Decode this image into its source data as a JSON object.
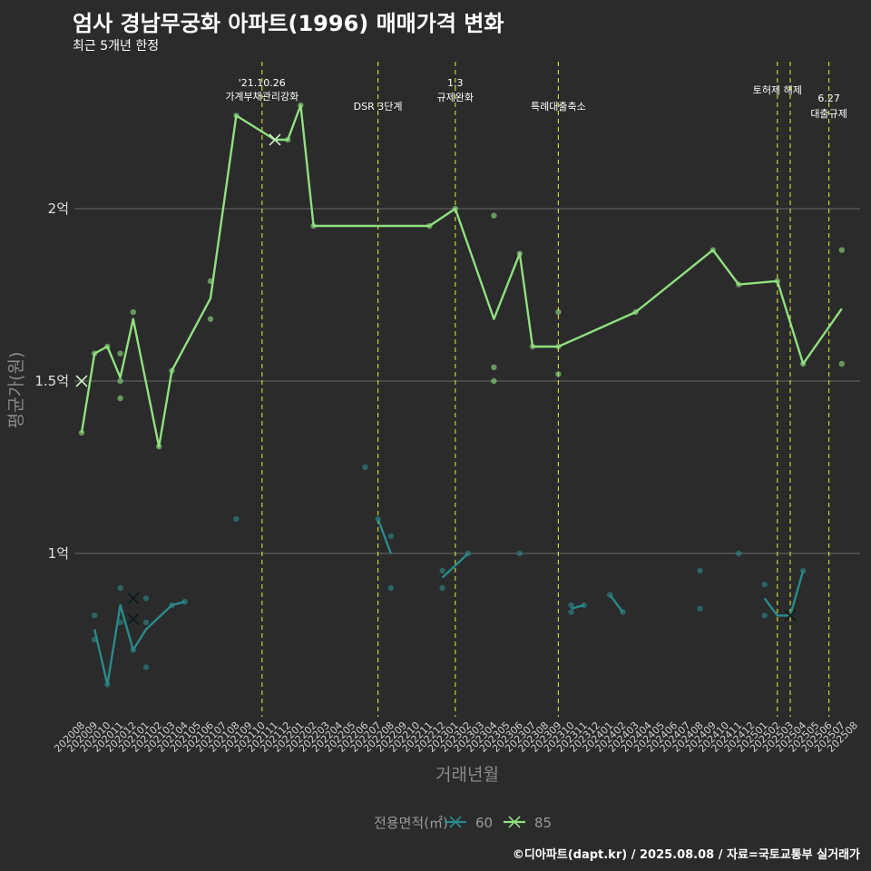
{
  "chart_data": {
    "type": "line",
    "title": "엄사 경남무궁화 아파트(1996) 매매가격 변화",
    "subtitle": "최근 5개년 한정",
    "xlabel": "거래년월",
    "ylabel": "평균가(원)",
    "caption": "©디아파트(dapt.kr) / 2025.08.08 / 자료=국토교통부 실거래가",
    "legend_title": "전용면적(㎡)",
    "legend_position": "bottom",
    "y_range": [
      0.5,
      2.15
    ],
    "y_ticks": [
      {
        "value": 1.0,
        "label": "1억"
      },
      {
        "value": 1.5,
        "label": "1.5억"
      },
      {
        "value": 2.0,
        "label": "2억"
      }
    ],
    "x_categories": [
      "202008",
      "202009",
      "202010",
      "202011",
      "202012",
      "202101",
      "202102",
      "202103",
      "202104",
      "202105",
      "202106",
      "202107",
      "202108",
      "202109",
      "202110",
      "202111",
      "202112",
      "202201",
      "202202",
      "202203",
      "202204",
      "202205",
      "202206",
      "202207",
      "202208",
      "202209",
      "202210",
      "202211",
      "202212",
      "202301",
      "202302",
      "202303",
      "202304",
      "202305",
      "202306",
      "202307",
      "202308",
      "202309",
      "202310",
      "202311",
      "202312",
      "202401",
      "202402",
      "202403",
      "202404",
      "202405",
      "202406",
      "202407",
      "202408",
      "202409",
      "202410",
      "202411",
      "202412",
      "202501",
      "202502",
      "202503",
      "202504",
      "202505",
      "202506",
      "202507",
      "202508"
    ],
    "events": [
      {
        "x": "202110",
        "lines": [
          "'21.10.26",
          "가계부채관리강화"
        ]
      },
      {
        "x": "202207",
        "lines": [
          "DSR 3단계"
        ]
      },
      {
        "x": "202301",
        "lines": [
          "1.3",
          "규제완화"
        ]
      },
      {
        "x": "202309",
        "lines": [
          "특례대출축소"
        ]
      },
      {
        "x": "202502",
        "lines": [
          "토허제 해제"
        ]
      },
      {
        "x": "202503",
        "lines": []
      },
      {
        "x": "202506",
        "lines": [
          "6.27",
          "대출규제"
        ]
      }
    ],
    "series": [
      {
        "name": "60",
        "color": "#2a8a8a",
        "line": [
          {
            "x": "202009",
            "y": 0.78
          },
          {
            "x": "202010",
            "y": 0.62
          },
          {
            "x": "202011",
            "y": 0.85
          },
          {
            "x": "202012",
            "y": 0.72
          },
          {
            "x": "202101",
            "y": 0.78
          },
          {
            "x": "202103",
            "y": 0.85
          },
          {
            "x": "202104",
            "y": 0.86
          },
          null,
          {
            "x": "202207",
            "y": 1.1
          },
          {
            "x": "202208",
            "y": 1.0
          },
          null,
          {
            "x": "202212",
            "y": 0.93
          },
          {
            "x": "202302",
            "y": 1.0
          },
          null,
          {
            "x": "202310",
            "y": 0.84
          },
          {
            "x": "202311",
            "y": 0.85
          },
          null,
          {
            "x": "202401",
            "y": 0.88
          },
          {
            "x": "202402",
            "y": 0.83
          },
          null,
          {
            "x": "202501",
            "y": 0.87
          },
          {
            "x": "202502",
            "y": 0.82
          },
          {
            "x": "202503",
            "y": 0.82
          },
          {
            "x": "202504",
            "y": 0.95
          }
        ],
        "points": [
          {
            "x": "202009",
            "y": 0.82
          },
          {
            "x": "202009",
            "y": 0.75
          },
          {
            "x": "202010",
            "y": 0.62
          },
          {
            "x": "202011",
            "y": 0.9
          },
          {
            "x": "202011",
            "y": 0.8
          },
          {
            "x": "202012",
            "y": 0.72
          },
          {
            "x": "202101",
            "y": 0.87
          },
          {
            "x": "202101",
            "y": 0.8
          },
          {
            "x": "202101",
            "y": 0.67
          },
          {
            "x": "202103",
            "y": 0.85
          },
          {
            "x": "202104",
            "y": 0.86
          },
          {
            "x": "202108",
            "y": 1.1
          },
          {
            "x": "202206",
            "y": 1.25
          },
          {
            "x": "202207",
            "y": 1.1
          },
          {
            "x": "202208",
            "y": 1.05
          },
          {
            "x": "202208",
            "y": 0.9
          },
          {
            "x": "202212",
            "y": 0.95
          },
          {
            "x": "202212",
            "y": 0.9
          },
          {
            "x": "202302",
            "y": 1.0
          },
          {
            "x": "202306",
            "y": 1.0
          },
          {
            "x": "202310",
            "y": 0.85
          },
          {
            "x": "202310",
            "y": 0.83
          },
          {
            "x": "202311",
            "y": 0.85
          },
          {
            "x": "202401",
            "y": 0.88
          },
          {
            "x": "202402",
            "y": 0.83
          },
          {
            "x": "202408",
            "y": 0.95
          },
          {
            "x": "202408",
            "y": 0.84
          },
          {
            "x": "202411",
            "y": 1.0
          },
          {
            "x": "202501",
            "y": 0.91
          },
          {
            "x": "202501",
            "y": 0.82
          },
          {
            "x": "202504",
            "y": 0.95
          }
        ],
        "crosses": [
          {
            "x": "202012",
            "y": 0.87
          },
          {
            "x": "202012",
            "y": 0.81
          },
          {
            "x": "202503",
            "y": 0.82
          }
        ]
      },
      {
        "name": "85",
        "color": "#90e080",
        "line": [
          {
            "x": "202008",
            "y": 1.35
          },
          {
            "x": "202009",
            "y": 1.58
          },
          {
            "x": "202010",
            "y": 1.6
          },
          {
            "x": "202011",
            "y": 1.51
          },
          {
            "x": "202012",
            "y": 1.68
          },
          {
            "x": "202102",
            "y": 1.31
          },
          {
            "x": "202103",
            "y": 1.53
          },
          {
            "x": "202106",
            "y": 1.74
          },
          {
            "x": "202108",
            "y": 2.27
          },
          {
            "x": "202111",
            "y": 2.2
          },
          {
            "x": "202112",
            "y": 2.2
          },
          {
            "x": "202201",
            "y": 2.3
          },
          {
            "x": "202202",
            "y": 1.95
          },
          {
            "x": "202211",
            "y": 1.95
          },
          {
            "x": "202301",
            "y": 2.0
          },
          {
            "x": "202304",
            "y": 1.68
          },
          {
            "x": "202306",
            "y": 1.87
          },
          {
            "x": "202307",
            "y": 1.6
          },
          {
            "x": "202309",
            "y": 1.6
          },
          {
            "x": "202403",
            "y": 1.7
          },
          {
            "x": "202409",
            "y": 1.88
          },
          {
            "x": "202411",
            "y": 1.78
          },
          {
            "x": "202502",
            "y": 1.79
          },
          {
            "x": "202504",
            "y": 1.55
          },
          {
            "x": "202507",
            "y": 1.71
          }
        ],
        "points": [
          {
            "x": "202008",
            "y": 1.35
          },
          {
            "x": "202009",
            "y": 1.58
          },
          {
            "x": "202010",
            "y": 1.6
          },
          {
            "x": "202011",
            "y": 1.58
          },
          {
            "x": "202011",
            "y": 1.5
          },
          {
            "x": "202011",
            "y": 1.45
          },
          {
            "x": "202012",
            "y": 1.7
          },
          {
            "x": "202102",
            "y": 1.31
          },
          {
            "x": "202103",
            "y": 1.53
          },
          {
            "x": "202106",
            "y": 1.79
          },
          {
            "x": "202106",
            "y": 1.68
          },
          {
            "x": "202108",
            "y": 2.27
          },
          {
            "x": "202112",
            "y": 2.2
          },
          {
            "x": "202201",
            "y": 2.3
          },
          {
            "x": "202202",
            "y": 1.95
          },
          {
            "x": "202211",
            "y": 1.95
          },
          {
            "x": "202301",
            "y": 2.0
          },
          {
            "x": "202304",
            "y": 1.98
          },
          {
            "x": "202304",
            "y": 1.54
          },
          {
            "x": "202304",
            "y": 1.5
          },
          {
            "x": "202306",
            "y": 1.87
          },
          {
            "x": "202307",
            "y": 1.6
          },
          {
            "x": "202309",
            "y": 1.7
          },
          {
            "x": "202309",
            "y": 1.6
          },
          {
            "x": "202309",
            "y": 1.52
          },
          {
            "x": "202403",
            "y": 1.7
          },
          {
            "x": "202409",
            "y": 1.88
          },
          {
            "x": "202411",
            "y": 1.78
          },
          {
            "x": "202502",
            "y": 1.79
          },
          {
            "x": "202504",
            "y": 1.55
          },
          {
            "x": "202507",
            "y": 1.88
          },
          {
            "x": "202507",
            "y": 1.55
          }
        ],
        "crosses": [
          {
            "x": "202008",
            "y": 1.5
          },
          {
            "x": "202111",
            "y": 2.2
          }
        ]
      }
    ]
  }
}
